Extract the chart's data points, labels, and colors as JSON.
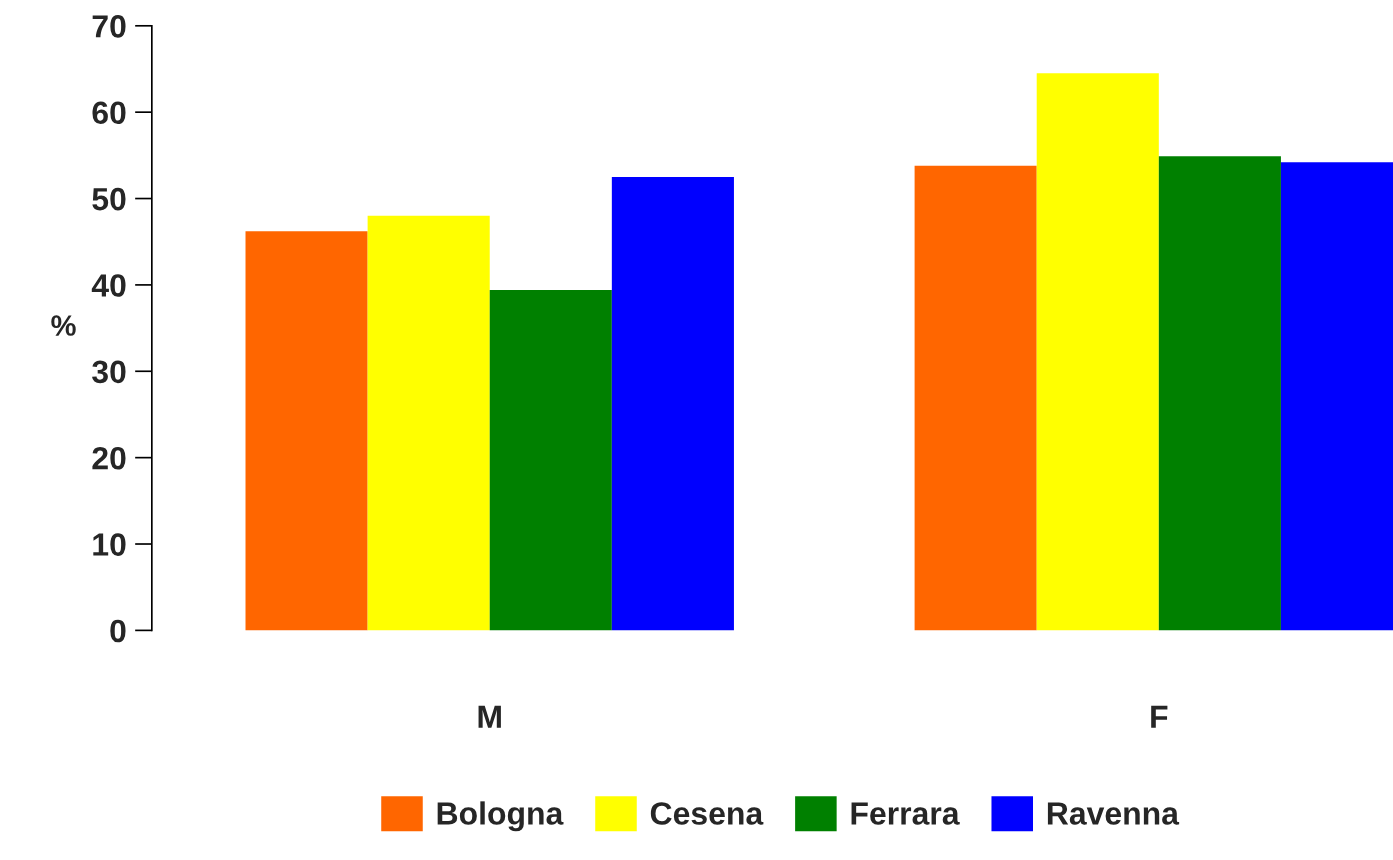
{
  "chart_data": {
    "type": "bar",
    "ylabel": "%",
    "categories": [
      "M",
      "F"
    ],
    "series": [
      {
        "name": "Bologna",
        "color": "#ff6600",
        "values": [
          46.2,
          53.8
        ]
      },
      {
        "name": "Cesena",
        "color": "#ffff00",
        "values": [
          48.0,
          64.5
        ]
      },
      {
        "name": "Ferrara",
        "color": "#008000",
        "values": [
          39.4,
          54.9
        ]
      },
      {
        "name": "Ravenna",
        "color": "#0000ff",
        "values": [
          52.5,
          54.2
        ]
      }
    ],
    "ylim": [
      0,
      70
    ],
    "yticks": [
      0,
      10,
      20,
      30,
      40,
      50,
      60,
      70
    ],
    "grid": false,
    "legend": "bottom"
  }
}
